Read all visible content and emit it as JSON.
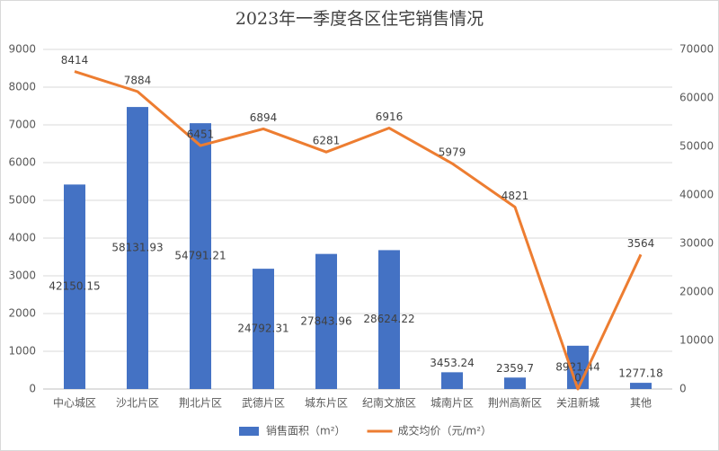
{
  "chart_data": {
    "type": "bar",
    "title": "2023年一季度各区住宅销售情况",
    "categories": [
      "中心城区",
      "沙北片区",
      "荆北片区",
      "武德片区",
      "城东片区",
      "纪南文旅区",
      "城南片区",
      "荆州高新区",
      "关沮新城",
      "其他"
    ],
    "series": [
      {
        "name": "销售面积（m²）",
        "type": "bar",
        "axis": "y2",
        "color": "#4472c4",
        "values": [
          42150.15,
          58131.93,
          54791.21,
          24792.31,
          27843.96,
          28624.22,
          3453.24,
          2359.7,
          8921.44,
          1277.18
        ]
      },
      {
        "name": "成交均价（元/m²）",
        "type": "line",
        "axis": "y",
        "color": "#ed7d31",
        "values": [
          8414,
          7884,
          6451,
          6894,
          6281,
          6916,
          5979,
          4821,
          0,
          3564
        ]
      }
    ],
    "ylim": [
      0,
      9000
    ],
    "yticks": [
      0,
      1000,
      2000,
      3000,
      4000,
      5000,
      6000,
      7000,
      8000,
      9000
    ],
    "y2lim": [
      0,
      70000
    ],
    "y2ticks": [
      0,
      10000,
      20000,
      30000,
      40000,
      50000,
      60000,
      70000
    ],
    "grid": true,
    "legend": "bottom"
  }
}
